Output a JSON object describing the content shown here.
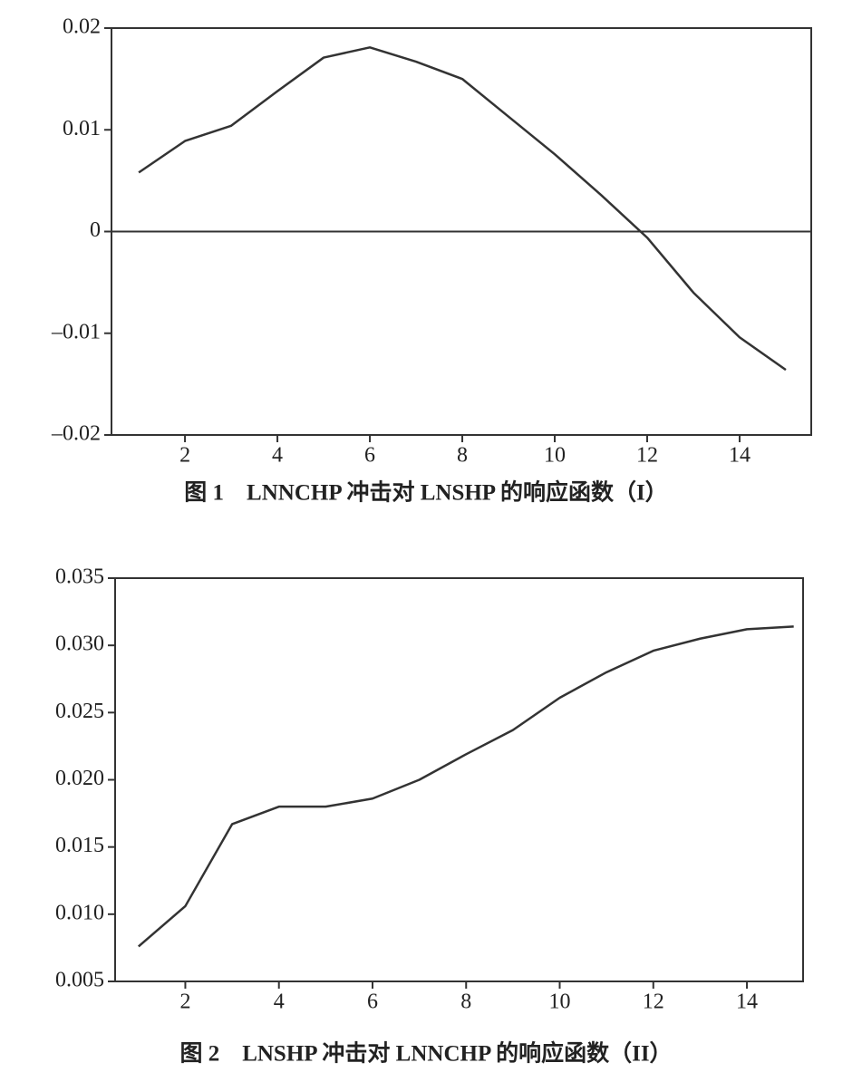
{
  "chart_data": [
    {
      "type": "line",
      "title": "图 1　LNNCHP 冲击对 LNSHP 的响应函数（I）",
      "x": [
        1,
        2,
        3,
        4,
        5,
        6,
        7,
        8,
        9,
        10,
        11,
        12,
        13,
        14,
        15
      ],
      "series": [
        {
          "color": "#333333",
          "values": [
            0.0058,
            0.0089,
            0.0104,
            0.0138,
            0.0171,
            0.0181,
            0.0167,
            0.015,
            0.0113,
            0.0076,
            0.0036,
            -0.0006,
            -0.006,
            -0.0104,
            -0.0136
          ]
        }
      ],
      "xlim": [
        0.41,
        15.55
      ],
      "xticks": [
        2,
        4,
        6,
        8,
        10,
        12,
        14
      ],
      "ylim": [
        -0.02,
        0.02
      ],
      "yticks": [
        0.02,
        0.01,
        0,
        {
          "value": -0.01,
          "label": "–0.01"
        },
        {
          "value": -0.02,
          "label": "–0.02"
        }
      ]
    },
    {
      "type": "line",
      "title": "图 2　LNSHP 冲击对 LNNCHP 的响应函数（II）",
      "x": [
        1,
        2,
        3,
        4,
        5,
        6,
        7,
        8,
        9,
        10,
        11,
        12,
        13,
        14,
        15
      ],
      "series": [
        {
          "color": "#333333",
          "values": [
            0.0076,
            0.0106,
            0.0167,
            0.018,
            0.018,
            0.0186,
            0.02,
            0.0219,
            0.0237,
            0.0261,
            0.028,
            0.0296,
            0.0305,
            0.0312,
            0.0314
          ]
        }
      ],
      "xlim": [
        0.5,
        15.2
      ],
      "xticks": [
        2,
        4,
        6,
        8,
        10,
        12,
        14
      ],
      "ylim": [
        0.005,
        0.035
      ],
      "yticks": [
        0.005,
        {
          "value": 0.01,
          "label": "0.010"
        },
        0.015,
        {
          "value": 0.02,
          "label": "0.020"
        },
        0.025,
        {
          "value": 0.03,
          "label": "0.030"
        },
        0.035
      ]
    }
  ]
}
